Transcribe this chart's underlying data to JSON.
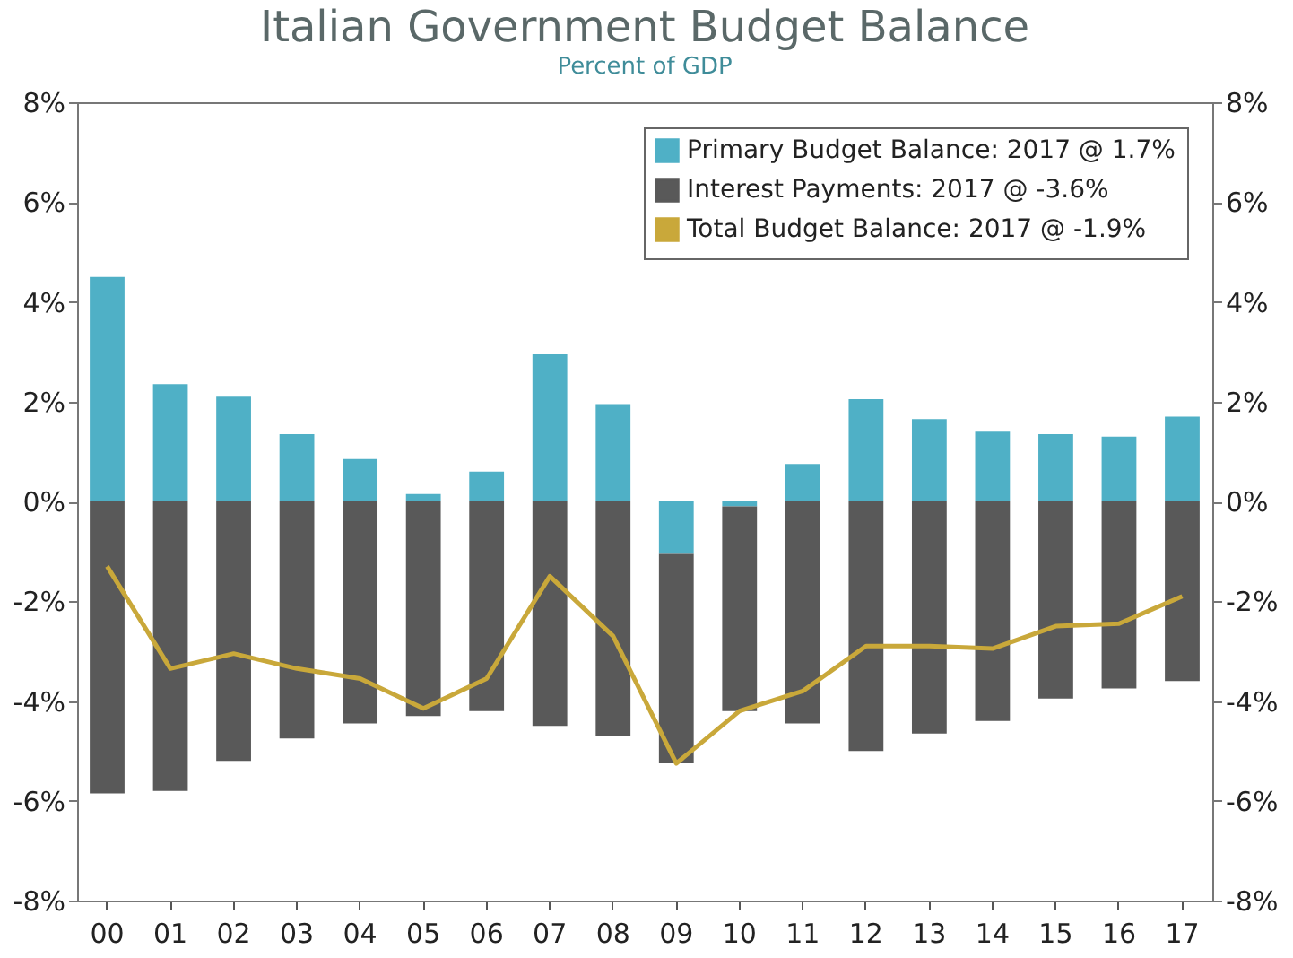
{
  "chart_data": {
    "type": "bar",
    "title": "Italian Government Budget Balance",
    "subtitle": "Percent of GDP",
    "categories": [
      "00",
      "01",
      "02",
      "03",
      "04",
      "05",
      "06",
      "07",
      "08",
      "09",
      "10",
      "11",
      "12",
      "13",
      "14",
      "15",
      "16",
      "17"
    ],
    "stacked": true,
    "series": [
      {
        "name": "Primary Budget Balance: 2017 @ 1.7%",
        "color": "#4fb0c6",
        "type": "bar",
        "values": [
          4.5,
          2.35,
          2.1,
          1.35,
          0.85,
          0.15,
          0.6,
          2.95,
          1.95,
          -1.05,
          -0.1,
          0.75,
          2.05,
          1.65,
          1.4,
          1.35,
          1.3,
          1.7
        ]
      },
      {
        "name": "Interest Payments: 2017 @ -3.6%",
        "color": "#595959",
        "type": "bar",
        "values": [
          -5.85,
          -5.8,
          -5.2,
          -4.75,
          -4.45,
          -4.3,
          -4.2,
          -4.5,
          -4.7,
          -4.2,
          -4.1,
          -4.45,
          -5.0,
          -4.65,
          -4.4,
          -3.95,
          -3.75,
          -3.6
        ]
      },
      {
        "name": "Total Budget Balance: 2017 @ -1.9%",
        "color": "#c9a83a",
        "type": "line",
        "values": [
          -1.3,
          -3.35,
          -3.05,
          -3.35,
          -3.55,
          -4.15,
          -3.55,
          -1.5,
          -2.7,
          -5.25,
          -4.2,
          -3.8,
          -2.9,
          -2.9,
          -2.95,
          -2.5,
          -2.45,
          -1.9
        ]
      }
    ],
    "ylim": [
      -8,
      8
    ],
    "yticks": [
      {
        "value": -8,
        "label": "-8%"
      },
      {
        "value": -6,
        "label": "-6%"
      },
      {
        "value": -4,
        "label": "-4%"
      },
      {
        "value": -2,
        "label": "-2%"
      },
      {
        "value": 0,
        "label": "0%"
      },
      {
        "value": 2,
        "label": "2%"
      },
      {
        "value": 4,
        "label": "4%"
      },
      {
        "value": 6,
        "label": "6%"
      },
      {
        "value": 8,
        "label": "8%"
      }
    ],
    "y2lim": [
      -8,
      8
    ],
    "y2ticks": [
      {
        "value": -8,
        "label": "-8%"
      },
      {
        "value": -6,
        "label": "-6%"
      },
      {
        "value": -4,
        "label": "-4%"
      },
      {
        "value": -2,
        "label": "-2%"
      },
      {
        "value": 0,
        "label": "0%"
      },
      {
        "value": 2,
        "label": "2%"
      },
      {
        "value": 4,
        "label": "4%"
      },
      {
        "value": 6,
        "label": "6%"
      },
      {
        "value": 8,
        "label": "8%"
      }
    ],
    "grid": false,
    "legend": "top right"
  }
}
